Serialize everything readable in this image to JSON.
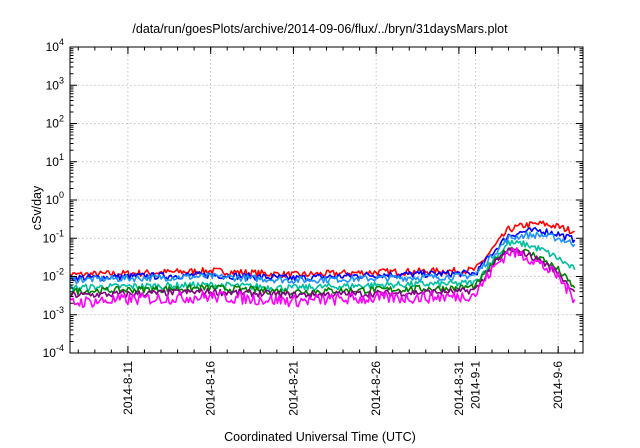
{
  "chart_data": {
    "type": "line",
    "title": "/data/run/goesPlots/archive/2014-09-06/flux/../bryn/31daysMars.plot",
    "xlabel": "Coordinated Universal Time (UTC)",
    "ylabel": "cSv/day",
    "yscale": "log",
    "ylim": [
      0.0001,
      10000
    ],
    "xlim": [
      "2014-08-07T12:00",
      "2014-09-07T12:00"
    ],
    "y_tick_labels": [
      {
        "base": "10",
        "exp": "-4"
      },
      {
        "base": "10",
        "exp": "-3"
      },
      {
        "base": "10",
        "exp": "-2"
      },
      {
        "base": "10",
        "exp": "-1"
      },
      {
        "base": "10",
        "exp": "0"
      },
      {
        "base": "10",
        "exp": "1"
      },
      {
        "base": "10",
        "exp": "2"
      },
      {
        "base": "10",
        "exp": "3"
      },
      {
        "base": "10",
        "exp": "4"
      }
    ],
    "x_tick_labels": [
      "2014-8-11",
      "2014-8-16",
      "2014-8-21",
      "2014-8-26",
      "2014-8-31",
      "2014-9-1",
      "2014-9-6"
    ],
    "x_ticks": [
      "2014-08-11",
      "2014-08-16",
      "2014-08-21",
      "2014-08-26",
      "2014-08-31",
      "2014-09-01",
      "2014-09-06"
    ],
    "grid": true,
    "series": [
      {
        "color": "#ff0000",
        "x": [
          "2014-08-07",
          "2014-08-11",
          "2014-08-16",
          "2014-08-21",
          "2014-08-26",
          "2014-08-31",
          "2014-09-01",
          "2014-09-02",
          "2014-09-03",
          "2014-09-04",
          "2014-09-05",
          "2014-09-06",
          "2014-09-07"
        ],
        "values": [
          0.011,
          0.012,
          0.014,
          0.011,
          0.013,
          0.014,
          0.015,
          0.05,
          0.17,
          0.22,
          0.24,
          0.2,
          0.15
        ]
      },
      {
        "color": "#0000ff",
        "x": [
          "2014-08-07",
          "2014-08-11",
          "2014-08-16",
          "2014-08-21",
          "2014-08-26",
          "2014-08-31",
          "2014-09-01",
          "2014-09-02",
          "2014-09-03",
          "2014-09-04",
          "2014-09-05",
          "2014-09-06",
          "2014-09-07"
        ],
        "values": [
          0.009,
          0.01,
          0.011,
          0.009,
          0.011,
          0.012,
          0.012,
          0.04,
          0.12,
          0.15,
          0.16,
          0.13,
          0.09
        ]
      },
      {
        "color": "#1e90ff",
        "x": [
          "2014-08-07",
          "2014-08-11",
          "2014-08-16",
          "2014-08-21",
          "2014-08-26",
          "2014-08-31",
          "2014-09-01",
          "2014-09-02",
          "2014-09-03",
          "2014-09-04",
          "2014-09-05",
          "2014-09-06",
          "2014-09-07"
        ],
        "values": [
          0.008,
          0.009,
          0.01,
          0.008,
          0.009,
          0.01,
          0.011,
          0.035,
          0.1,
          0.12,
          0.12,
          0.1,
          0.07
        ]
      },
      {
        "color": "#00c0a0",
        "x": [
          "2014-08-07",
          "2014-08-11",
          "2014-08-16",
          "2014-08-21",
          "2014-08-26",
          "2014-08-31",
          "2014-09-01",
          "2014-09-02",
          "2014-09-03",
          "2014-09-04",
          "2014-09-05",
          "2014-09-06",
          "2014-09-07"
        ],
        "values": [
          0.005,
          0.0055,
          0.006,
          0.005,
          0.006,
          0.0065,
          0.007,
          0.025,
          0.075,
          0.07,
          0.05,
          0.03,
          0.015
        ]
      },
      {
        "color": "#008000",
        "x": [
          "2014-08-07",
          "2014-08-11",
          "2014-08-16",
          "2014-08-21",
          "2014-08-26",
          "2014-08-31",
          "2014-09-01",
          "2014-09-02",
          "2014-09-03",
          "2014-09-04",
          "2014-09-05",
          "2014-09-06",
          "2014-09-07"
        ],
        "values": [
          0.004,
          0.0045,
          0.005,
          0.004,
          0.0045,
          0.005,
          0.0055,
          0.02,
          0.055,
          0.045,
          0.03,
          0.015,
          0.005
        ]
      },
      {
        "color": "#800080",
        "x": [
          "2014-08-07",
          "2014-08-11",
          "2014-08-16",
          "2014-08-21",
          "2014-08-26",
          "2014-08-31",
          "2014-09-01",
          "2014-09-02",
          "2014-09-03",
          "2014-09-04",
          "2014-09-05",
          "2014-09-06",
          "2014-09-07"
        ],
        "values": [
          0.0032,
          0.0035,
          0.004,
          0.0033,
          0.0036,
          0.004,
          0.0045,
          0.018,
          0.05,
          0.04,
          0.025,
          0.012,
          0.004
        ]
      },
      {
        "color": "#ff00ff",
        "x": [
          "2014-08-07",
          "2014-08-11",
          "2014-08-16",
          "2014-08-21",
          "2014-08-26",
          "2014-08-31",
          "2014-09-01",
          "2014-09-02",
          "2014-09-03",
          "2014-09-04",
          "2014-09-05",
          "2014-09-06",
          "2014-09-07"
        ],
        "values": [
          0.002,
          0.0025,
          0.003,
          0.0023,
          0.0027,
          0.003,
          0.0035,
          0.015,
          0.045,
          0.035,
          0.02,
          0.01,
          0.0025
        ]
      }
    ]
  }
}
